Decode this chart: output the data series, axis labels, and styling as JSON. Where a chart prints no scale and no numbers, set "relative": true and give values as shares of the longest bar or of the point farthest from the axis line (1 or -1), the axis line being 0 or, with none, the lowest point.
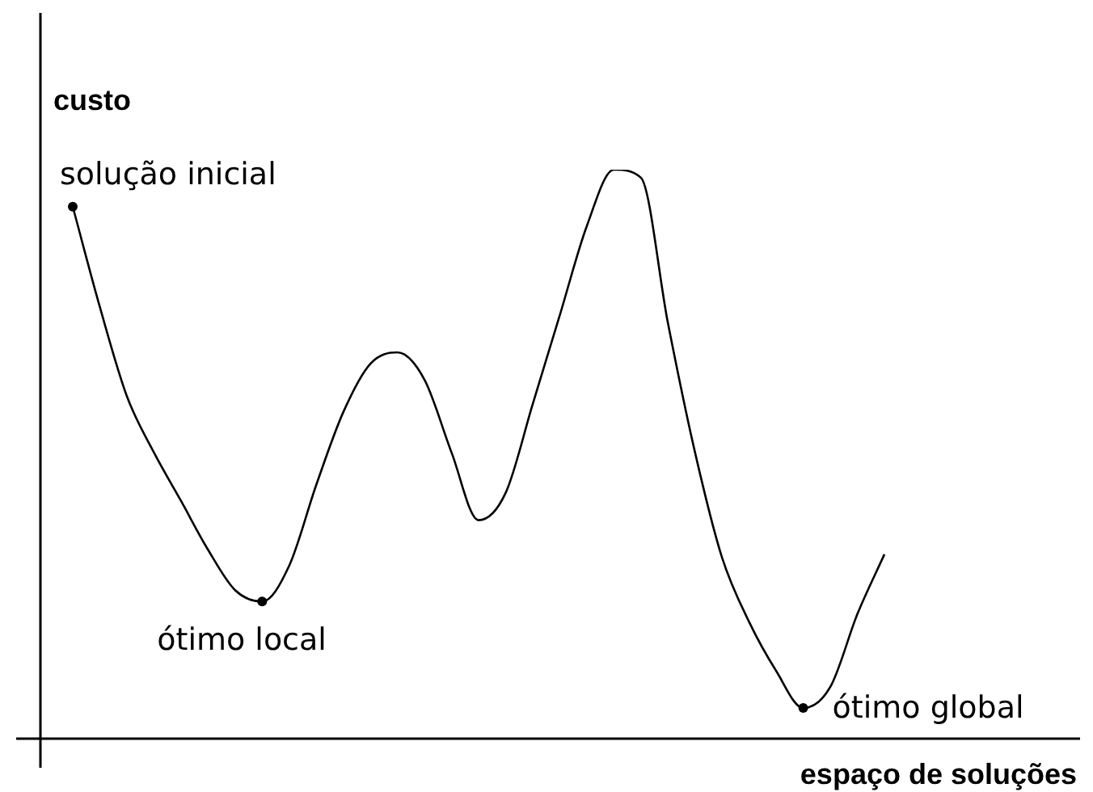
{
  "chart_data": {
    "type": "line",
    "relative": true,
    "xlabel": "espaço de soluções",
    "ylabel": "custo",
    "color": "#000000",
    "marker": "none",
    "line_style": "solid",
    "legend": false,
    "tick_labels": false,
    "categories": [
      null,
      null,
      null,
      null,
      null,
      null,
      null,
      null,
      null,
      null,
      null,
      null,
      null,
      null,
      null,
      null,
      null,
      null,
      null,
      null,
      null,
      null,
      null,
      null,
      null,
      null,
      null,
      null,
      null,
      null,
      null
    ],
    "values": [
      0.935,
      0.759,
      0.602,
      0.503,
      0.418,
      0.332,
      0.261,
      0.241,
      0.304,
      0.446,
      0.574,
      0.659,
      0.679,
      0.631,
      0.503,
      0.384,
      0.432,
      0.588,
      0.744,
      0.901,
      1,
      0.986,
      0.73,
      0.503,
      0.318,
      0.205,
      0.119,
      0.054,
      0.091,
      0.219,
      0.324
    ],
    "annotations": [
      "solução inicial",
      "ótimo local",
      "ótimo global"
    ]
  }
}
